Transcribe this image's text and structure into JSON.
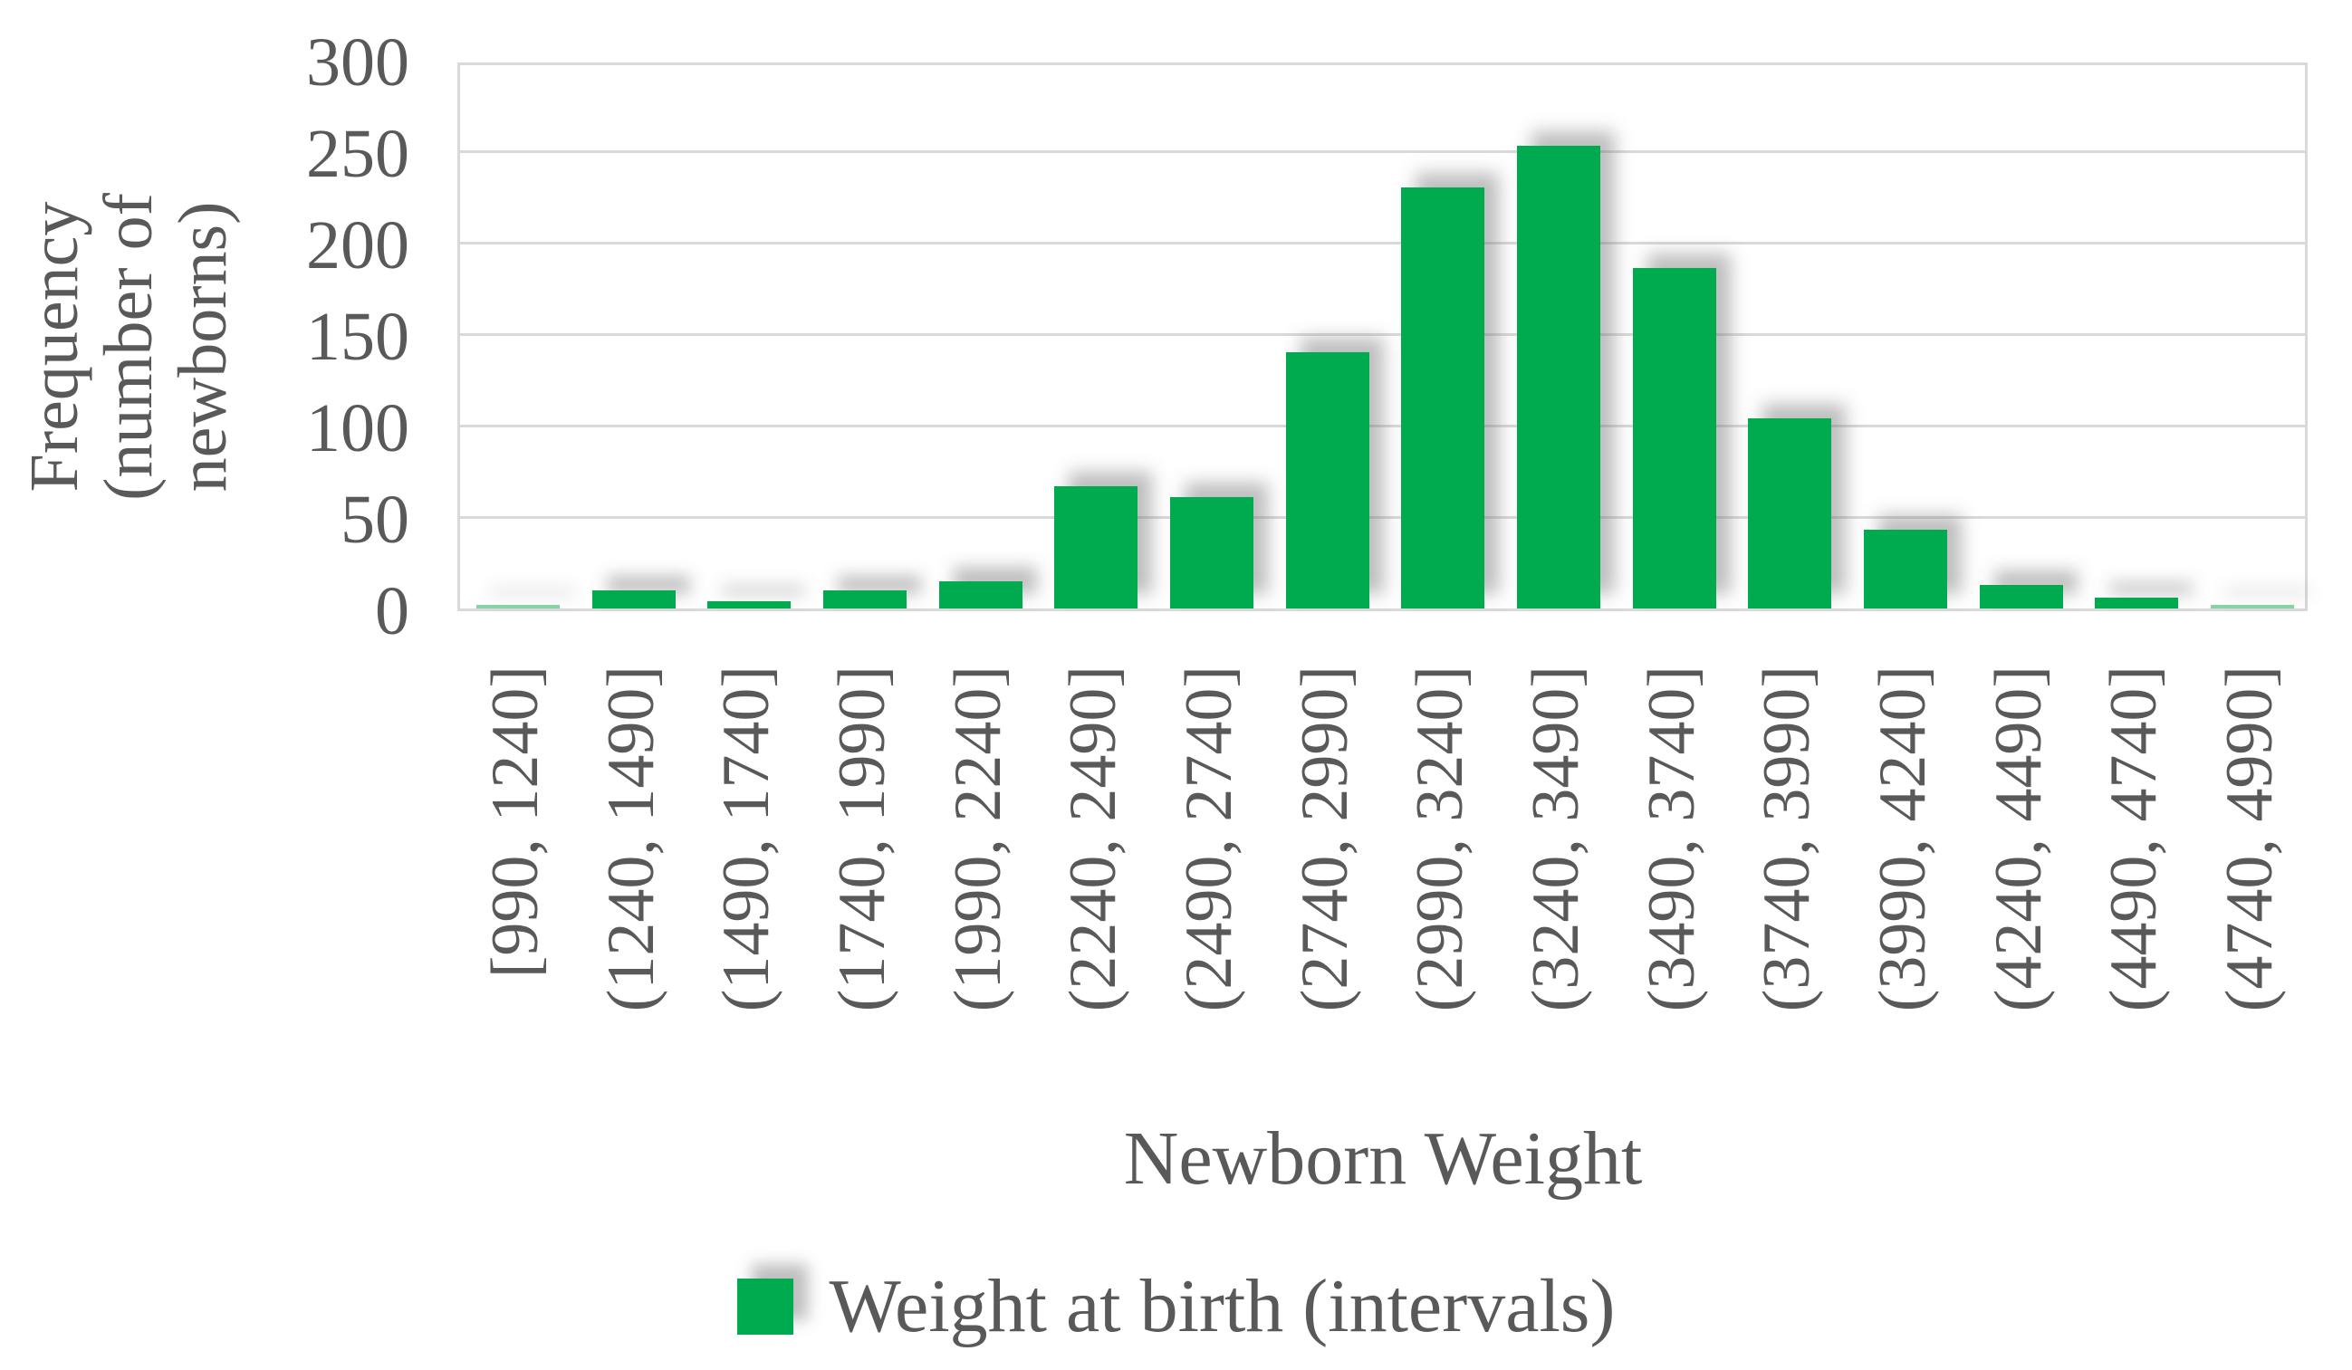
{
  "chart_data": {
    "type": "bar",
    "title": "",
    "xlabel": "Newborn Weight",
    "ylabel": "Frequency (number of newborns)",
    "ylabel_lines": [
      "Frequency",
      "(number of",
      "newborns)"
    ],
    "legend_label": "Weight at birth (intervals)",
    "legend_position": "bottom-center",
    "grid": "horizontal",
    "categories": [
      "[990, 1240]",
      "(1240, 1490]",
      "(1490, 1740]",
      "(1740, 1990]",
      "(1990, 2240]",
      "(2240, 2490]",
      "(2490, 2740]",
      "(2740, 2990]",
      "(2990, 3240]",
      "(3240, 3490]",
      "(3490, 3740]",
      "(3740, 3990]",
      "(3990, 4240]",
      "(4240, 4490]",
      "(4490, 4740]",
      "(4740, 4990]"
    ],
    "values": [
      2,
      10,
      4,
      10,
      15,
      67,
      61,
      140,
      230,
      253,
      186,
      104,
      43,
      13,
      6,
      2
    ],
    "ylim": [
      0,
      300
    ],
    "yticks": [
      0,
      50,
      100,
      150,
      200,
      250,
      300
    ],
    "colors": {
      "bar": "#00AB50",
      "bar_light": "#86D3A7",
      "gridline": "#D9D9D9",
      "text": "#595959",
      "shadow": "rgba(110,110,110,0.45)"
    },
    "light_bars": [
      0,
      15
    ]
  }
}
